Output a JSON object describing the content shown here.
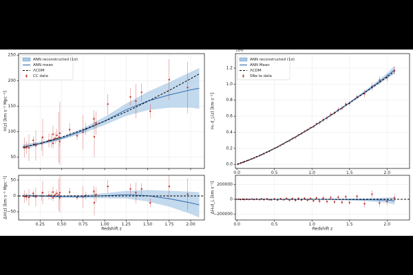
{
  "chart_data": [
    {
      "type": "errorbar",
      "ylabel": "H(z)  [km s⁻¹ Mpc⁻¹]",
      "xlim": [
        0,
        2.16
      ],
      "ylim": [
        28,
        253
      ],
      "xticks": [
        0.25,
        0.5,
        0.75,
        1,
        1.25,
        1.5,
        1.75,
        2
      ],
      "show_xtick_labels": false,
      "yticks": [
        50,
        100,
        150,
        200,
        250
      ],
      "grid": true,
      "legend": "upper left",
      "band": {
        "name": "ANN reconstructed (1σ)",
        "color": "#a9c9e6",
        "x": [
          0.05,
          0.25,
          0.5,
          0.75,
          1.0,
          1.25,
          1.5,
          1.75,
          2.0,
          2.1
        ],
        "lower": [
          65,
          74,
          84,
          97,
          113,
          131,
          142,
          147,
          147,
          145
        ],
        "upper": [
          75,
          80,
          90,
          107,
          129,
          155,
          178,
          197,
          217,
          225
        ]
      },
      "series": [
        {
          "name": "ANN mean",
          "color": "#1f5fa8",
          "style": "solid",
          "x": [
            0.05,
            0.25,
            0.5,
            0.75,
            1.0,
            1.25,
            1.5,
            1.75,
            2.0,
            2.1
          ],
          "values": [
            70,
            77,
            87,
            102,
            121,
            143,
            160,
            172,
            182,
            185
          ]
        },
        {
          "name": "ΛCDM",
          "color": "#000000",
          "style": "dashed",
          "x": [
            0.05,
            0.25,
            0.5,
            0.75,
            1.0,
            1.25,
            1.5,
            1.75,
            2.0,
            2.1
          ],
          "values": [
            69.4,
            77.1,
            89.2,
            103.8,
            120.5,
            139.1,
            159.3,
            180.9,
            203.8,
            213.3
          ]
        }
      ],
      "points": {
        "name": "CC data",
        "color": "#c0302b",
        "x": [
          0.07,
          0.09,
          0.12,
          0.17,
          0.179,
          0.199,
          0.2,
          0.27,
          0.28,
          0.352,
          0.38,
          0.4,
          0.4004,
          0.425,
          0.445,
          0.47,
          0.4783,
          0.48,
          0.593,
          0.68,
          0.75,
          0.781,
          0.875,
          0.88,
          0.9,
          1.037,
          1.3,
          1.363,
          1.43,
          1.53,
          1.75,
          1.965
        ],
        "values": [
          69,
          69,
          68.6,
          83,
          75,
          75,
          72.9,
          77,
          88.8,
          83,
          83,
          95,
          77,
          87.1,
          92.8,
          89,
          80.9,
          97,
          104,
          92,
          98.8,
          105,
          125,
          90,
          117,
          154,
          168,
          160,
          177,
          140,
          202,
          186.5
        ],
        "errors": [
          19.6,
          12,
          26.2,
          8,
          4,
          5,
          29.6,
          14,
          36.6,
          14,
          13.5,
          17,
          10.2,
          11.2,
          12.9,
          50,
          9,
          62,
          13,
          8,
          33.6,
          12,
          17,
          40,
          23,
          20,
          17,
          33.6,
          18,
          14,
          40,
          50.4
        ]
      }
    },
    {
      "type": "errorbar",
      "ylabel": "ΔH(z)  [km s⁻¹ Mpc⁻¹]",
      "xlabel": "Redshift  z",
      "xlim": [
        0,
        2.16
      ],
      "ylim": [
        -76,
        65
      ],
      "xticks": [
        {
          "value": 0.25,
          "label": "0.25"
        },
        {
          "value": 0.5,
          "label": "0.50"
        },
        {
          "value": 0.75,
          "label": "0.75"
        },
        {
          "value": 1,
          "label": "1.00"
        },
        {
          "value": 1.25,
          "label": "1.25"
        },
        {
          "value": 1.5,
          "label": "1.50"
        },
        {
          "value": 1.75,
          "label": "1.75"
        },
        {
          "value": 2,
          "label": "2.00"
        }
      ],
      "yticks": [
        {
          "value": -50,
          "label": "−50"
        },
        0,
        50
      ],
      "grid": true,
      "band": {
        "color": "#a9c9e6",
        "x": [
          0.05,
          0.25,
          0.5,
          0.75,
          1.0,
          1.25,
          1.5,
          1.75,
          2.0,
          2.1
        ],
        "lower": [
          -4.4,
          -3.1,
          -5.2,
          -6.8,
          -7.5,
          -8.1,
          -17.3,
          -33.9,
          -56.8,
          -68.3
        ],
        "upper": [
          5.6,
          2.9,
          0.8,
          3.2,
          8.5,
          15.9,
          18.7,
          16.1,
          13.2,
          11.7
        ]
      },
      "series": [
        {
          "color": "#1f5fa8",
          "style": "solid",
          "x": [
            0.05,
            0.25,
            0.5,
            0.75,
            1.0,
            1.25,
            1.5,
            1.75,
            2.0,
            2.1
          ],
          "values": [
            0.6,
            -0.1,
            -2.2,
            -1.8,
            0.5,
            3.9,
            0.7,
            -8.9,
            -21.8,
            -28.3
          ]
        },
        {
          "color": "#000000",
          "style": "dashed",
          "x": [
            0,
            2.16
          ],
          "values": [
            0,
            0
          ]
        }
      ],
      "points": {
        "color": "#c0302b",
        "x": [
          0.07,
          0.09,
          0.12,
          0.17,
          0.179,
          0.199,
          0.2,
          0.27,
          0.28,
          0.352,
          0.38,
          0.4,
          0.4004,
          0.425,
          0.445,
          0.47,
          0.4783,
          0.48,
          0.593,
          0.68,
          0.75,
          0.781,
          0.875,
          0.88,
          0.9,
          1.037,
          1.3,
          1.363,
          1.43,
          1.53,
          1.75,
          1.965
        ],
        "values": [
          -2,
          -3,
          -4.4,
          8,
          -0.5,
          -1,
          -3.1,
          -1,
          10.3,
          2,
          1,
          12,
          -6,
          3.1,
          7.8,
          3,
          -5.6,
          10,
          12,
          -5,
          -3.2,
          1,
          14,
          -21.5,
          4,
          30,
          22,
          10,
          22,
          -22,
          30,
          5.5
        ],
        "errors": [
          19.6,
          12,
          26.2,
          8,
          4,
          5,
          29.6,
          14,
          36.6,
          14,
          13.5,
          17,
          10.2,
          11.2,
          12.9,
          50,
          9,
          62,
          13,
          8,
          33.6,
          12,
          17,
          40,
          23,
          20,
          17,
          33.6,
          18,
          14,
          40,
          50.4
        ]
      }
    },
    {
      "type": "errorbar",
      "ylabel": "H₀ d_L(z)  [km s⁻¹]",
      "offset_label": "1e6",
      "xlim": [
        -0.02,
        2.3
      ],
      "ylim": [
        -0.05,
        1.38
      ],
      "xticks": [
        {
          "value": 0,
          "label": "0.0"
        },
        {
          "value": 0.5,
          "label": "0.5"
        },
        {
          "value": 1,
          "label": "1.0"
        },
        {
          "value": 1.5,
          "label": "1.5"
        },
        {
          "value": 2,
          "label": "2.0"
        }
      ],
      "yticks": [
        {
          "value": 0,
          "label": "0.0"
        },
        0.2,
        0.4,
        0.6,
        0.8,
        {
          "value": 1,
          "label": "1.0"
        },
        1.2
      ],
      "grid": true,
      "legend": "upper left",
      "band": {
        "name": "ANN reconstructed (1σ)",
        "color": "#a9c9e6",
        "x": [
          0,
          0.25,
          0.5,
          0.75,
          1.0,
          1.25,
          1.5,
          1.75,
          2.0,
          2.1
        ],
        "lower": [
          -0.003,
          0.085,
          0.193,
          0.32,
          0.456,
          0.604,
          0.756,
          0.91,
          1.065,
          1.13
        ],
        "upper": [
          0.003,
          0.091,
          0.201,
          0.33,
          0.468,
          0.62,
          0.78,
          0.95,
          1.135,
          1.23
        ]
      },
      "series": [
        {
          "name": "ANN Mean",
          "color": "#1f5fa8",
          "style": "solid",
          "x": [
            0,
            0.25,
            0.5,
            0.75,
            1.0,
            1.25,
            1.5,
            1.75,
            2.0,
            2.1
          ],
          "values": [
            0,
            0.088,
            0.197,
            0.325,
            0.462,
            0.612,
            0.768,
            0.93,
            1.1,
            1.18
          ]
        },
        {
          "name": "ΛCDM",
          "color": "#000000",
          "style": "dashed",
          "x": [
            0,
            0.25,
            0.5,
            0.75,
            1.0,
            1.25,
            1.5,
            1.75,
            2.0,
            2.1
          ],
          "values": [
            0,
            0.088,
            0.198,
            0.326,
            0.462,
            0.611,
            0.765,
            0.924,
            1.089,
            1.158
          ]
        }
      ],
      "points": {
        "name": "SNe Ia data",
        "color": "#c0302b",
        "x": [
          0.02,
          0.05,
          0.08,
          0.1,
          0.13,
          0.16,
          0.2,
          0.23,
          0.26,
          0.3,
          0.33,
          0.36,
          0.4,
          0.43,
          0.46,
          0.5,
          0.54,
          0.58,
          0.62,
          0.66,
          0.7,
          0.74,
          0.78,
          0.82,
          0.86,
          0.9,
          0.94,
          0.98,
          1.02,
          1.06,
          1.1,
          1.15,
          1.2,
          1.25,
          1.3,
          1.35,
          1.4,
          1.45,
          1.5,
          1.6,
          1.7,
          1.8,
          1.9,
          2.0,
          2.1
        ],
        "values": [
          0.006,
          0.016,
          0.025,
          0.033,
          0.043,
          0.053,
          0.069,
          0.081,
          0.094,
          0.108,
          0.121,
          0.133,
          0.152,
          0.163,
          0.18,
          0.2,
          0.215,
          0.236,
          0.255,
          0.28,
          0.296,
          0.322,
          0.338,
          0.365,
          0.385,
          0.41,
          0.43,
          0.455,
          0.47,
          0.505,
          0.52,
          0.555,
          0.58,
          0.62,
          0.64,
          0.68,
          0.7,
          0.75,
          0.76,
          0.84,
          0.88,
          0.97,
          1.05,
          1.08,
          1.17
        ],
        "errors": [
          0.004,
          0.004,
          0.004,
          0.004,
          0.004,
          0.004,
          0.004,
          0.004,
          0.004,
          0.004,
          0.01,
          0.01,
          0.01,
          0.01,
          0.01,
          0.01,
          0.01,
          0.01,
          0.01,
          0.01,
          0.02,
          0.02,
          0.02,
          0.02,
          0.02,
          0.02,
          0.02,
          0.02,
          0.02,
          0.02,
          0.03,
          0.03,
          0.03,
          0.03,
          0.03,
          0.03,
          0.03,
          0.03,
          0.03,
          0.03,
          0.05,
          0.05,
          0.05,
          0.05,
          0.05
        ]
      }
    },
    {
      "type": "errorbar",
      "ylabel": "ΔH₀d_L  [km s⁻¹]",
      "xlabel": "Redshift  z",
      "xlim": [
        -0.02,
        2.3
      ],
      "ylim": [
        -280000,
        325000
      ],
      "xticks": [
        {
          "value": 0,
          "label": "0.0"
        },
        {
          "value": 0.5,
          "label": "0.5"
        },
        {
          "value": 1,
          "label": "1.0"
        },
        {
          "value": 1.5,
          "label": "1.5"
        },
        {
          "value": 2,
          "label": "2.0"
        }
      ],
      "yticks": [
        {
          "value": -200000,
          "label": "−200000"
        },
        0,
        200000
      ],
      "grid": true,
      "band": {
        "color": "#a9c9e6",
        "x": [
          0,
          0.25,
          0.5,
          0.75,
          1.0,
          1.25,
          1.5,
          1.75,
          2.0,
          2.1
        ],
        "lower": [
          -3000,
          -3000,
          -5000,
          -6000,
          -6000,
          -9000,
          -15000,
          -26000,
          -46000,
          -72000
        ],
        "upper": [
          3000,
          3000,
          3000,
          4000,
          6000,
          7000,
          9000,
          14000,
          24000,
          28000
        ]
      },
      "series": [
        {
          "color": "#1f5fa8",
          "style": "solid",
          "x": [
            0,
            0.25,
            0.5,
            0.75,
            1.0,
            1.25,
            1.5,
            1.75,
            2.0,
            2.1
          ],
          "values": [
            0,
            0,
            -1000,
            -1000,
            0,
            -1000,
            -3000,
            -6000,
            -11000,
            -22000
          ]
        },
        {
          "color": "#000000",
          "style": "dashed",
          "x": [
            -0.02,
            2.3
          ],
          "values": [
            0,
            0
          ]
        }
      ],
      "points": {
        "color": "#c0302b",
        "x": [
          0.02,
          0.05,
          0.08,
          0.1,
          0.13,
          0.16,
          0.2,
          0.23,
          0.26,
          0.3,
          0.33,
          0.36,
          0.4,
          0.43,
          0.46,
          0.5,
          0.54,
          0.58,
          0.62,
          0.66,
          0.7,
          0.74,
          0.78,
          0.82,
          0.86,
          0.9,
          0.94,
          0.98,
          1.02,
          1.06,
          1.1,
          1.15,
          1.2,
          1.25,
          1.3,
          1.35,
          1.4,
          1.45,
          1.5,
          1.6,
          1.7,
          1.8,
          1.9,
          2.0,
          2.1
        ],
        "values": [
          1000,
          -2000,
          1500,
          -3000,
          2000,
          -1500,
          3000,
          -2500,
          4000,
          -3500,
          5000,
          -4000,
          6000,
          -5000,
          -7000,
          4000,
          -9000,
          8000,
          -6000,
          12000,
          -10000,
          9000,
          -15000,
          11000,
          -8000,
          14000,
          -12000,
          10000,
          -20000,
          18000,
          -25000,
          16000,
          -30000,
          22000,
          -35000,
          28000,
          -40000,
          35000,
          -45000,
          40000,
          -60000,
          70000,
          -50000,
          -30000,
          20000
        ],
        "errors": [
          4000,
          4000,
          4000,
          4000,
          4000,
          4000,
          4000,
          4000,
          4000,
          4000,
          10000,
          10000,
          10000,
          10000,
          10000,
          10000,
          10000,
          10000,
          10000,
          10000,
          20000,
          20000,
          20000,
          20000,
          20000,
          20000,
          20000,
          20000,
          20000,
          20000,
          30000,
          30000,
          30000,
          30000,
          30000,
          30000,
          30000,
          30000,
          30000,
          30000,
          50000,
          50000,
          50000,
          50000,
          50000
        ]
      }
    }
  ]
}
